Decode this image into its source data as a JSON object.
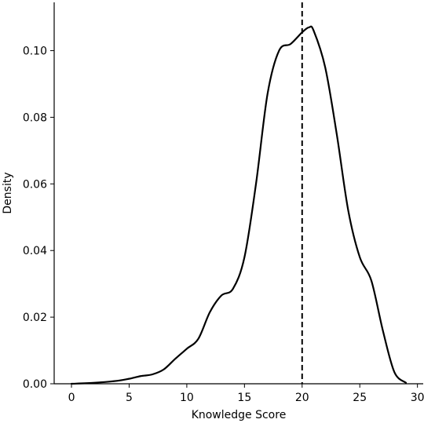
{
  "chart_data": {
    "type": "line",
    "xlabel": "Knowledge Score",
    "ylabel": "Density",
    "xlim": [
      -1.5,
      30.5
    ],
    "ylim": [
      0,
      0.1145
    ],
    "x_ticks": [
      0,
      5,
      10,
      15,
      20,
      25,
      30
    ],
    "y_ticks": [
      0.0,
      0.02,
      0.04,
      0.06,
      0.08,
      0.1
    ],
    "y_tick_labels": [
      "0.00",
      "0.02",
      "0.04",
      "0.06",
      "0.08",
      "0.10"
    ],
    "grid": false,
    "spines": [
      "left",
      "bottom"
    ],
    "series": [
      {
        "x": [
          0,
          2,
          4,
          5,
          6,
          7,
          8,
          9,
          10,
          11,
          12,
          13,
          14,
          15,
          16,
          17,
          18,
          19,
          20,
          20.6,
          21,
          22,
          23,
          24,
          25,
          26,
          27,
          28,
          29
        ],
        "y": [
          0.0,
          0.0003,
          0.0009,
          0.0015,
          0.0023,
          0.0028,
          0.0043,
          0.0075,
          0.0105,
          0.0135,
          0.0215,
          0.0265,
          0.0285,
          0.038,
          0.06,
          0.087,
          0.1,
          0.102,
          0.1055,
          0.107,
          0.106,
          0.095,
          0.075,
          0.052,
          0.038,
          0.031,
          0.016,
          0.0035,
          0.0003
        ],
        "color": "#000000"
      }
    ],
    "reference_lines": [
      {
        "axis": "x",
        "value": 20,
        "style": "dashed",
        "color": "#000000"
      }
    ]
  }
}
